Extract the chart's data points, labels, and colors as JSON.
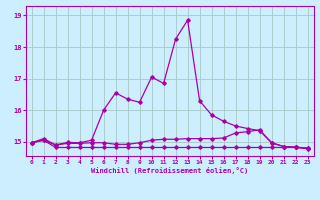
{
  "xlabel": "Windchill (Refroidissement éolien,°C)",
  "bg_color": "#cceeff",
  "grid_color": "#aacccc",
  "line_color": "#aa00aa",
  "xlim": [
    -0.5,
    23.5
  ],
  "ylim": [
    14.55,
    19.3
  ],
  "xticks": [
    0,
    1,
    2,
    3,
    4,
    5,
    6,
    7,
    8,
    9,
    10,
    11,
    12,
    13,
    14,
    15,
    16,
    17,
    18,
    19,
    20,
    21,
    22,
    23
  ],
  "yticks": [
    15,
    16,
    17,
    18,
    19
  ],
  "series1_x": [
    0,
    1,
    2,
    3,
    4,
    5,
    6,
    7,
    8,
    9,
    10,
    11,
    12,
    13,
    14,
    15,
    16,
    17,
    18,
    19,
    20,
    21,
    22,
    23
  ],
  "series1_y": [
    14.97,
    15.05,
    14.82,
    14.82,
    14.82,
    14.82,
    14.82,
    14.82,
    14.82,
    14.82,
    14.82,
    14.82,
    14.82,
    14.82,
    14.82,
    14.82,
    14.82,
    14.82,
    14.82,
    14.82,
    14.82,
    14.82,
    14.82,
    14.78
  ],
  "series2_x": [
    0,
    1,
    2,
    3,
    4,
    5,
    6,
    7,
    8,
    9,
    10,
    11,
    12,
    13,
    14,
    15,
    16,
    17,
    18,
    19,
    20,
    21,
    22,
    23
  ],
  "series2_y": [
    14.97,
    15.05,
    14.9,
    14.95,
    14.95,
    14.97,
    14.97,
    14.92,
    14.92,
    14.97,
    15.05,
    15.08,
    15.08,
    15.1,
    15.1,
    15.1,
    15.12,
    15.28,
    15.32,
    15.38,
    14.97,
    14.85,
    14.83,
    14.8
  ],
  "series3_x": [
    0,
    1,
    2,
    3,
    4,
    5,
    6,
    7,
    8,
    9,
    10,
    11,
    12,
    13,
    14,
    15,
    16,
    17,
    18,
    19,
    20,
    21,
    22,
    23
  ],
  "series3_y": [
    14.97,
    15.1,
    14.9,
    14.98,
    14.97,
    15.05,
    16.0,
    16.55,
    16.35,
    16.25,
    17.05,
    16.85,
    18.25,
    18.85,
    16.3,
    15.85,
    15.65,
    15.5,
    15.42,
    15.35,
    14.97,
    14.85,
    14.83,
    14.8
  ]
}
